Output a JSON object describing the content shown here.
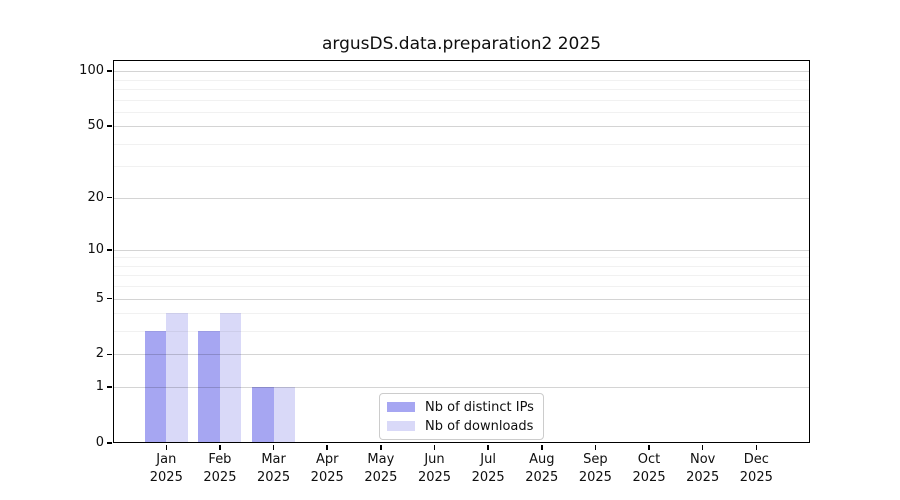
{
  "title": "argusDS.data.preparation2 2025",
  "chart_data": {
    "type": "bar",
    "title": "argusDS.data.preparation2 2025",
    "categories": [
      "Jan",
      "Feb",
      "Mar",
      "Apr",
      "May",
      "Jun",
      "Jul",
      "Aug",
      "Sep",
      "Oct",
      "Nov",
      "Dec"
    ],
    "category_year": "2025",
    "series": [
      {
        "name": "Nb of distinct IPs",
        "color": "#a6a6f2",
        "values": [
          3,
          3,
          1,
          0,
          0,
          0,
          0,
          0,
          0,
          0,
          0,
          0
        ]
      },
      {
        "name": "Nb of downloads",
        "color": "#d9d9f8",
        "values": [
          4,
          4,
          1,
          0,
          0,
          0,
          0,
          0,
          0,
          0,
          0,
          0
        ]
      }
    ],
    "xlabel": "",
    "ylabel": "",
    "yscale": "log1p",
    "ylim": [
      0,
      115
    ],
    "yticks": [
      0,
      1,
      2,
      5,
      10,
      20,
      50,
      100
    ],
    "yticks_minor": [
      3,
      4,
      6,
      7,
      8,
      9,
      30,
      40,
      60,
      70,
      80,
      90
    ],
    "grid": true,
    "legend_position": "lower center"
  },
  "colors": {
    "bar_distinct_ips": "#a6a6f2",
    "bar_downloads": "#d9d9f8",
    "grid_major": "rgba(0,0,0,0.17)",
    "grid_minor": "rgba(0,0,0,0.055)",
    "spine": "#000000",
    "text": "#0f0f0f",
    "legend_border": "#cccccc"
  }
}
